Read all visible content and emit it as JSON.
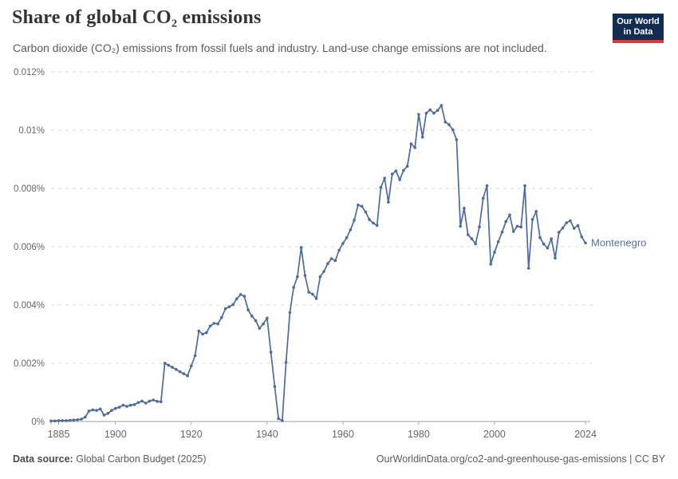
{
  "header": {
    "title": "Share of global CO₂ emissions",
    "subtitle": "Carbon dioxide (CO₂) emissions from fossil fuels and industry. Land-use change emissions are not included.",
    "logo": {
      "line1": "Our World",
      "line2": "in Data",
      "bg_color": "#132c51",
      "accent_color": "#d73c3c"
    }
  },
  "footer": {
    "source_label": "Data source:",
    "source_text": "Global Carbon Budget (2025)",
    "credit": "OurWorldinData.org/co2-and-greenhouse-gas-emissions | CC BY"
  },
  "chart_data": {
    "type": "line",
    "title": "Share of global CO₂ emissions",
    "xlabel": "",
    "ylabel": "",
    "xlim": [
      1883,
      2024
    ],
    "ylim": [
      0,
      0.012
    ],
    "grid": "dashed-horizontal",
    "legend_position": "end-of-line-label",
    "colors": {
      "line": "#4C6A9C",
      "label": "#57729b",
      "grid": "#d9dbde",
      "axis": "#a1a6ac",
      "tick_text": "#666666"
    },
    "xticks": [
      1885,
      1900,
      1920,
      1940,
      1960,
      1980,
      2000,
      2024
    ],
    "yticks": [
      {
        "v": 0,
        "label": "0%"
      },
      {
        "v": 0.002,
        "label": "0.002%"
      },
      {
        "v": 0.004,
        "label": "0.004%"
      },
      {
        "v": 0.006,
        "label": "0.006%"
      },
      {
        "v": 0.008,
        "label": "0.008%"
      },
      {
        "v": 0.01,
        "label": "0.01%"
      },
      {
        "v": 0.012,
        "label": "0.012%"
      }
    ],
    "series": [
      {
        "name": "Montenegro",
        "points": [
          [
            1883,
            2e-05
          ],
          [
            1884,
            2e-05
          ],
          [
            1885,
            3e-05
          ],
          [
            1886,
            3e-05
          ],
          [
            1887,
            3e-05
          ],
          [
            1888,
            4e-05
          ],
          [
            1889,
            5e-05
          ],
          [
            1890,
            6e-05
          ],
          [
            1891,
            8e-05
          ],
          [
            1892,
            0.00015
          ],
          [
            1893,
            0.00036
          ],
          [
            1894,
            0.0004
          ],
          [
            1895,
            0.00038
          ],
          [
            1896,
            0.00043
          ],
          [
            1897,
            0.00022
          ],
          [
            1898,
            0.00028
          ],
          [
            1899,
            0.00038
          ],
          [
            1900,
            0.00045
          ],
          [
            1901,
            0.00049
          ],
          [
            1902,
            0.00056
          ],
          [
            1903,
            0.00052
          ],
          [
            1904,
            0.00056
          ],
          [
            1905,
            0.00058
          ],
          [
            1906,
            0.00065
          ],
          [
            1907,
            0.0007
          ],
          [
            1908,
            0.00063
          ],
          [
            1909,
            0.0007
          ],
          [
            1910,
            0.00074
          ],
          [
            1911,
            0.00069
          ],
          [
            1912,
            0.00068
          ],
          [
            1913,
            0.002
          ],
          [
            1914,
            0.00193
          ],
          [
            1915,
            0.00186
          ],
          [
            1916,
            0.00179
          ],
          [
            1917,
            0.00171
          ],
          [
            1918,
            0.00164
          ],
          [
            1919,
            0.00157
          ],
          [
            1920,
            0.00191
          ],
          [
            1921,
            0.00226
          ],
          [
            1922,
            0.00311
          ],
          [
            1923,
            0.003
          ],
          [
            1924,
            0.00305
          ],
          [
            1925,
            0.00328
          ],
          [
            1926,
            0.00337
          ],
          [
            1927,
            0.00335
          ],
          [
            1928,
            0.00357
          ],
          [
            1929,
            0.00387
          ],
          [
            1930,
            0.00394
          ],
          [
            1931,
            0.00401
          ],
          [
            1932,
            0.00421
          ],
          [
            1933,
            0.00436
          ],
          [
            1934,
            0.0043
          ],
          [
            1935,
            0.00383
          ],
          [
            1936,
            0.00362
          ],
          [
            1937,
            0.00346
          ],
          [
            1938,
            0.0032
          ],
          [
            1939,
            0.00335
          ],
          [
            1940,
            0.00355
          ],
          [
            1941,
            0.00238
          ],
          [
            1942,
            0.0012
          ],
          [
            1943,
            0.0001
          ],
          [
            1944,
            3e-05
          ],
          [
            1945,
            0.00203
          ],
          [
            1946,
            0.00374
          ],
          [
            1947,
            0.0046
          ],
          [
            1948,
            0.00497
          ],
          [
            1949,
            0.00597
          ],
          [
            1950,
            0.00501
          ],
          [
            1951,
            0.00444
          ],
          [
            1952,
            0.00437
          ],
          [
            1953,
            0.00422
          ],
          [
            1954,
            0.00497
          ],
          [
            1955,
            0.00515
          ],
          [
            1956,
            0.00542
          ],
          [
            1957,
            0.00559
          ],
          [
            1958,
            0.00552
          ],
          [
            1959,
            0.00588
          ],
          [
            1960,
            0.00611
          ],
          [
            1961,
            0.00631
          ],
          [
            1962,
            0.00658
          ],
          [
            1963,
            0.00691
          ],
          [
            1964,
            0.00743
          ],
          [
            1965,
            0.00739
          ],
          [
            1966,
            0.00719
          ],
          [
            1967,
            0.00693
          ],
          [
            1968,
            0.00681
          ],
          [
            1969,
            0.00673
          ],
          [
            1970,
            0.00803
          ],
          [
            1971,
            0.00835
          ],
          [
            1972,
            0.00753
          ],
          [
            1973,
            0.00849
          ],
          [
            1974,
            0.0086
          ],
          [
            1975,
            0.0083
          ],
          [
            1976,
            0.00862
          ],
          [
            1977,
            0.00876
          ],
          [
            1978,
            0.00953
          ],
          [
            1979,
            0.0094
          ],
          [
            1980,
            0.01054
          ],
          [
            1981,
            0.00976
          ],
          [
            1982,
            0.01058
          ],
          [
            1983,
            0.0107
          ],
          [
            1984,
            0.01058
          ],
          [
            1985,
            0.01068
          ],
          [
            1986,
            0.01085
          ],
          [
            1987,
            0.01028
          ],
          [
            1988,
            0.01019
          ],
          [
            1989,
            0.01001
          ],
          [
            1990,
            0.00967
          ],
          [
            1991,
            0.0067
          ],
          [
            1992,
            0.00732
          ],
          [
            1993,
            0.00641
          ],
          [
            1994,
            0.00627
          ],
          [
            1995,
            0.0061
          ],
          [
            1996,
            0.00668
          ],
          [
            1997,
            0.00766
          ],
          [
            1998,
            0.00809
          ],
          [
            1999,
            0.0054
          ],
          [
            2000,
            0.00581
          ],
          [
            2001,
            0.00617
          ],
          [
            2002,
            0.0065
          ],
          [
            2003,
            0.00686
          ],
          [
            2004,
            0.00709
          ],
          [
            2005,
            0.00652
          ],
          [
            2006,
            0.0067
          ],
          [
            2007,
            0.00668
          ],
          [
            2008,
            0.00809
          ],
          [
            2009,
            0.00526
          ],
          [
            2010,
            0.00693
          ],
          [
            2011,
            0.00721
          ],
          [
            2012,
            0.00631
          ],
          [
            2013,
            0.00609
          ],
          [
            2014,
            0.00595
          ],
          [
            2015,
            0.00627
          ],
          [
            2016,
            0.00561
          ],
          [
            2017,
            0.00649
          ],
          [
            2018,
            0.00664
          ],
          [
            2019,
            0.00682
          ],
          [
            2020,
            0.00689
          ],
          [
            2021,
            0.00663
          ],
          [
            2022,
            0.00673
          ],
          [
            2023,
            0.00634
          ],
          [
            2024,
            0.00613
          ]
        ]
      }
    ]
  }
}
